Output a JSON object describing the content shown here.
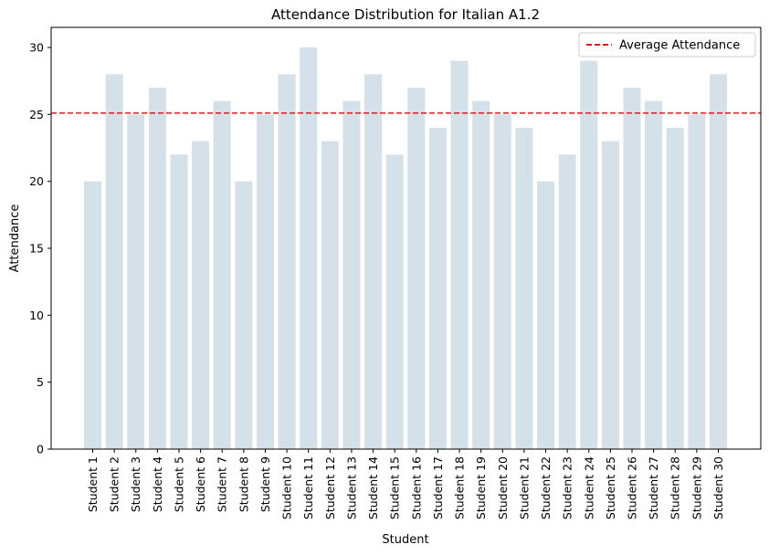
{
  "chart_data": {
    "type": "bar",
    "title": "Attendance Distribution for Italian A1.2",
    "xlabel": "Student",
    "ylabel": "Attendance",
    "ylim": [
      0,
      31.5
    ],
    "yticks": [
      0,
      5,
      10,
      15,
      20,
      25,
      30
    ],
    "categories": [
      "Student 1",
      "Student 2",
      "Student 3",
      "Student 4",
      "Student 5",
      "Student 6",
      "Student 7",
      "Student 8",
      "Student 9",
      "Student 10",
      "Student 11",
      "Student 12",
      "Student 13",
      "Student 14",
      "Student 15",
      "Student 16",
      "Student 17",
      "Student 18",
      "Student 19",
      "Student 20",
      "Student 21",
      "Student 22",
      "Student 23",
      "Student 24",
      "Student 25",
      "Student 26",
      "Student 27",
      "Student 28",
      "Student 29",
      "Student 30"
    ],
    "values": [
      20,
      28,
      25,
      27,
      22,
      23,
      26,
      20,
      25,
      28,
      30,
      23,
      26,
      28,
      22,
      27,
      24,
      29,
      26,
      25,
      24,
      20,
      22,
      29,
      23,
      27,
      26,
      24,
      25,
      28
    ],
    "average": 25.1,
    "bar_color": "#d4e1e8",
    "average_line_color": "#e31a1c",
    "legend": {
      "entries": [
        "Average Attendance"
      ],
      "position": "top-right"
    },
    "grid": false
  }
}
